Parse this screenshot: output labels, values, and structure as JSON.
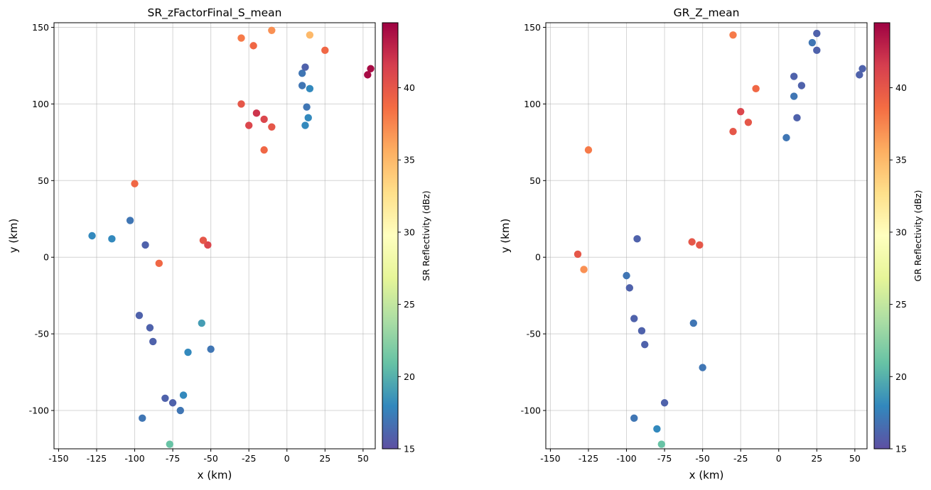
{
  "chart_data": [
    {
      "type": "scatter",
      "title": "SR_zFactorFinal_S_mean",
      "xlabel": "x (km)",
      "ylabel": "y (km)",
      "xlim": [
        -153,
        58
      ],
      "ylim": [
        -125,
        153
      ],
      "xticks": [
        -150,
        -125,
        -100,
        -75,
        -50,
        -25,
        0,
        25,
        50
      ],
      "yticks": [
        -100,
        -50,
        0,
        50,
        100,
        150
      ],
      "grid": true,
      "colorbar": {
        "label": "SR Reflectivity (dBz)",
        "min": 15,
        "max": 44.5,
        "ticks": [
          15,
          20,
          25,
          30,
          35,
          40
        ],
        "colormap": "Spectral_r"
      },
      "points": [
        {
          "x": 53,
          "y": 119,
          "v": 44
        },
        {
          "x": 55,
          "y": 123,
          "v": 44
        },
        {
          "x": 25,
          "y": 135,
          "v": 39
        },
        {
          "x": 15,
          "y": 145,
          "v": 35
        },
        {
          "x": -30,
          "y": 143,
          "v": 38
        },
        {
          "x": -22,
          "y": 138,
          "v": 39
        },
        {
          "x": -10,
          "y": 148,
          "v": 37
        },
        {
          "x": 10,
          "y": 120,
          "v": 17
        },
        {
          "x": 12,
          "y": 124,
          "v": 16
        },
        {
          "x": 15,
          "y": 110,
          "v": 18
        },
        {
          "x": 10,
          "y": 112,
          "v": 17
        },
        {
          "x": 13,
          "y": 98,
          "v": 17
        },
        {
          "x": 14,
          "y": 91,
          "v": 18
        },
        {
          "x": 12,
          "y": 86,
          "v": 18
        },
        {
          "x": -20,
          "y": 94,
          "v": 42
        },
        {
          "x": -15,
          "y": 90,
          "v": 41
        },
        {
          "x": -25,
          "y": 86,
          "v": 41
        },
        {
          "x": -10,
          "y": 85,
          "v": 40
        },
        {
          "x": -30,
          "y": 100,
          "v": 40
        },
        {
          "x": -15,
          "y": 70,
          "v": 39
        },
        {
          "x": -100,
          "y": 48,
          "v": 39
        },
        {
          "x": -52,
          "y": 8,
          "v": 41
        },
        {
          "x": -55,
          "y": 11,
          "v": 40
        },
        {
          "x": -84,
          "y": -4,
          "v": 39
        },
        {
          "x": -128,
          "y": 14,
          "v": 18
        },
        {
          "x": -115,
          "y": 12,
          "v": 18
        },
        {
          "x": -103,
          "y": 24,
          "v": 17
        },
        {
          "x": -93,
          "y": 8,
          "v": 16
        },
        {
          "x": -97,
          "y": -38,
          "v": 16
        },
        {
          "x": -90,
          "y": -46,
          "v": 16
        },
        {
          "x": -88,
          "y": -55,
          "v": 16
        },
        {
          "x": -75,
          "y": -95,
          "v": 16
        },
        {
          "x": -80,
          "y": -92,
          "v": 16
        },
        {
          "x": -95,
          "y": -105,
          "v": 17
        },
        {
          "x": -70,
          "y": -100,
          "v": 17
        },
        {
          "x": -77,
          "y": -122,
          "v": 21
        },
        {
          "x": -68,
          "y": -90,
          "v": 18
        },
        {
          "x": -56,
          "y": -43,
          "v": 19
        },
        {
          "x": -50,
          "y": -60,
          "v": 17
        },
        {
          "x": -65,
          "y": -62,
          "v": 18
        }
      ]
    },
    {
      "type": "scatter",
      "title": "GR_Z_mean",
      "xlabel": "x (km)",
      "ylabel": "y (km)",
      "xlim": [
        -153,
        58
      ],
      "ylim": [
        -125,
        153
      ],
      "xticks": [
        -150,
        -125,
        -100,
        -75,
        -50,
        -25,
        0,
        25,
        50
      ],
      "yticks": [
        -100,
        -50,
        0,
        50,
        100,
        150
      ],
      "grid": true,
      "colorbar": {
        "label": "GR Reflectivity (dBz)",
        "min": 15,
        "max": 44.5,
        "ticks": [
          15,
          20,
          25,
          30,
          35,
          40
        ],
        "colormap": "Spectral_r"
      },
      "points": [
        {
          "x": 53,
          "y": 119,
          "v": 16
        },
        {
          "x": 55,
          "y": 123,
          "v": 16
        },
        {
          "x": 25,
          "y": 146,
          "v": 16
        },
        {
          "x": 25,
          "y": 135,
          "v": 16
        },
        {
          "x": 22,
          "y": 140,
          "v": 17
        },
        {
          "x": 10,
          "y": 118,
          "v": 16
        },
        {
          "x": 15,
          "y": 112,
          "v": 16
        },
        {
          "x": 10,
          "y": 105,
          "v": 17
        },
        {
          "x": 12,
          "y": 91,
          "v": 16
        },
        {
          "x": 5,
          "y": 78,
          "v": 17
        },
        {
          "x": -25,
          "y": 95,
          "v": 41
        },
        {
          "x": -20,
          "y": 88,
          "v": 40
        },
        {
          "x": -30,
          "y": 82,
          "v": 40
        },
        {
          "x": -15,
          "y": 110,
          "v": 39
        },
        {
          "x": -30,
          "y": 145,
          "v": 38
        },
        {
          "x": -125,
          "y": 70,
          "v": 38
        },
        {
          "x": -132,
          "y": 2,
          "v": 40
        },
        {
          "x": -128,
          "y": -8,
          "v": 37
        },
        {
          "x": -52,
          "y": 8,
          "v": 40
        },
        {
          "x": -57,
          "y": 10,
          "v": 40
        },
        {
          "x": -93,
          "y": 12,
          "v": 16
        },
        {
          "x": -100,
          "y": -12,
          "v": 17
        },
        {
          "x": -98,
          "y": -20,
          "v": 16
        },
        {
          "x": -95,
          "y": -40,
          "v": 16
        },
        {
          "x": -90,
          "y": -48,
          "v": 16
        },
        {
          "x": -88,
          "y": -57,
          "v": 16
        },
        {
          "x": -75,
          "y": -95,
          "v": 16
        },
        {
          "x": -95,
          "y": -105,
          "v": 17
        },
        {
          "x": -80,
          "y": -112,
          "v": 18
        },
        {
          "x": -77,
          "y": -122,
          "v": 21
        },
        {
          "x": -56,
          "y": -43,
          "v": 17
        },
        {
          "x": -50,
          "y": -72,
          "v": 17
        }
      ]
    }
  ]
}
